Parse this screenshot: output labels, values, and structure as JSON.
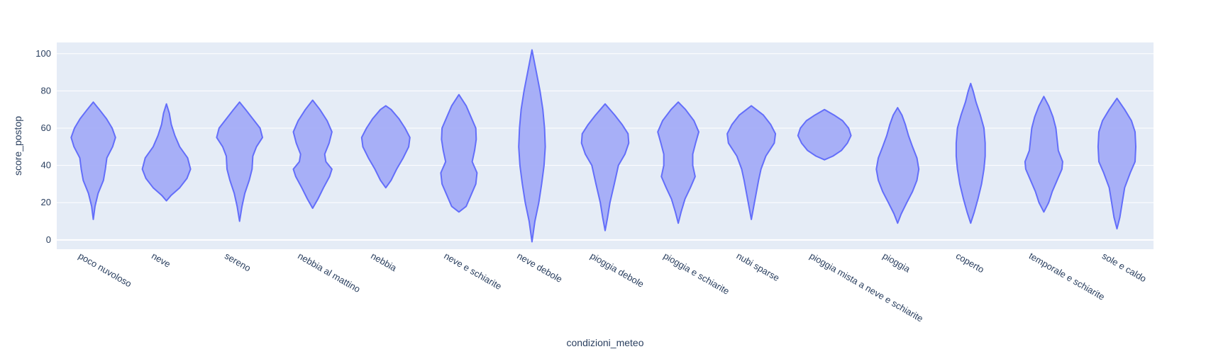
{
  "chart_data": {
    "type": "violin",
    "xlabel": "condizioni_meteo",
    "ylabel": "score_postop",
    "ylim": [
      -5,
      106
    ],
    "yticks": [
      0,
      20,
      40,
      60,
      80,
      100
    ],
    "grid": true,
    "colors": {
      "plot_bg": "#e5ecf6",
      "grid": "#ffffff",
      "fill": "#a3acf7",
      "line": "#636efa",
      "text": "#2a3f5f"
    },
    "categories": [
      "poco nuvoloso",
      "neve",
      "sereno",
      "nebbia al mattino",
      "nebbia",
      "neve e schiarite",
      "neve debole",
      "pioggia debole",
      "pioggia e schiarite",
      "nubi sparse",
      "pioggia mista a neve e schiarite",
      "pioggia",
      "coperto",
      "temporale e schiarite",
      "sole e caldo"
    ],
    "violins": [
      {
        "category": "poco nuvoloso",
        "min": 11,
        "max": 74,
        "profile": [
          [
            11,
            0
          ],
          [
            18,
            0.07
          ],
          [
            25,
            0.2
          ],
          [
            32,
            0.42
          ],
          [
            38,
            0.5
          ],
          [
            44,
            0.56
          ],
          [
            50,
            0.8
          ],
          [
            55,
            0.92
          ],
          [
            60,
            0.78
          ],
          [
            65,
            0.55
          ],
          [
            70,
            0.25
          ],
          [
            74,
            0
          ]
        ]
      },
      {
        "category": "neve",
        "min": 21,
        "max": 73,
        "profile": [
          [
            21,
            0
          ],
          [
            24,
            0.2
          ],
          [
            28,
            0.55
          ],
          [
            33,
            0.85
          ],
          [
            38,
            1.0
          ],
          [
            44,
            0.88
          ],
          [
            50,
            0.55
          ],
          [
            56,
            0.35
          ],
          [
            62,
            0.2
          ],
          [
            68,
            0.12
          ],
          [
            73,
            0
          ]
        ]
      },
      {
        "category": "sereno",
        "min": 10,
        "max": 74,
        "profile": [
          [
            10,
            0
          ],
          [
            18,
            0.1
          ],
          [
            25,
            0.22
          ],
          [
            32,
            0.4
          ],
          [
            38,
            0.52
          ],
          [
            45,
            0.55
          ],
          [
            50,
            0.7
          ],
          [
            55,
            0.95
          ],
          [
            60,
            0.85
          ],
          [
            65,
            0.55
          ],
          [
            70,
            0.25
          ],
          [
            74,
            0
          ]
        ]
      },
      {
        "category": "nebbia al mattino",
        "min": 17,
        "max": 75,
        "profile": [
          [
            17,
            0
          ],
          [
            22,
            0.22
          ],
          [
            28,
            0.45
          ],
          [
            34,
            0.7
          ],
          [
            38,
            0.8
          ],
          [
            42,
            0.55
          ],
          [
            46,
            0.5
          ],
          [
            52,
            0.68
          ],
          [
            58,
            0.8
          ],
          [
            64,
            0.6
          ],
          [
            70,
            0.3
          ],
          [
            75,
            0
          ]
        ]
      },
      {
        "category": "nebbia",
        "min": 28,
        "max": 72,
        "profile": [
          [
            28,
            0
          ],
          [
            32,
            0.22
          ],
          [
            38,
            0.45
          ],
          [
            44,
            0.72
          ],
          [
            50,
            0.95
          ],
          [
            55,
            1.0
          ],
          [
            60,
            0.8
          ],
          [
            65,
            0.55
          ],
          [
            70,
            0.22
          ],
          [
            72,
            0
          ]
        ]
      },
      {
        "category": "neve e schiarite",
        "min": 15,
        "max": 78,
        "profile": [
          [
            15,
            0
          ],
          [
            18,
            0.3
          ],
          [
            24,
            0.5
          ],
          [
            30,
            0.7
          ],
          [
            36,
            0.75
          ],
          [
            42,
            0.55
          ],
          [
            48,
            0.65
          ],
          [
            54,
            0.72
          ],
          [
            60,
            0.7
          ],
          [
            66,
            0.5
          ],
          [
            72,
            0.3
          ],
          [
            78,
            0
          ]
        ]
      },
      {
        "category": "neve debole",
        "min": -1,
        "max": 102,
        "profile": [
          [
            -1,
            0
          ],
          [
            10,
            0.12
          ],
          [
            20,
            0.28
          ],
          [
            30,
            0.4
          ],
          [
            40,
            0.5
          ],
          [
            50,
            0.55
          ],
          [
            60,
            0.52
          ],
          [
            70,
            0.45
          ],
          [
            80,
            0.33
          ],
          [
            90,
            0.18
          ],
          [
            102,
            0
          ]
        ]
      },
      {
        "category": "pioggia debole",
        "min": 5,
        "max": 73,
        "profile": [
          [
            5,
            0
          ],
          [
            12,
            0.1
          ],
          [
            20,
            0.2
          ],
          [
            30,
            0.38
          ],
          [
            40,
            0.55
          ],
          [
            46,
            0.82
          ],
          [
            52,
            0.98
          ],
          [
            57,
            0.95
          ],
          [
            62,
            0.7
          ],
          [
            67,
            0.4
          ],
          [
            73,
            0
          ]
        ]
      },
      {
        "category": "pioggia e schiarite",
        "min": 9,
        "max": 74,
        "profile": [
          [
            9,
            0
          ],
          [
            15,
            0.12
          ],
          [
            22,
            0.28
          ],
          [
            28,
            0.5
          ],
          [
            34,
            0.7
          ],
          [
            40,
            0.6
          ],
          [
            46,
            0.6
          ],
          [
            52,
            0.72
          ],
          [
            58,
            0.85
          ],
          [
            64,
            0.65
          ],
          [
            70,
            0.3
          ],
          [
            74,
            0
          ]
        ]
      },
      {
        "category": "nubi sparse",
        "min": 11,
        "max": 72,
        "profile": [
          [
            11,
            0
          ],
          [
            18,
            0.1
          ],
          [
            25,
            0.2
          ],
          [
            32,
            0.3
          ],
          [
            38,
            0.4
          ],
          [
            45,
            0.6
          ],
          [
            52,
            0.95
          ],
          [
            57,
            1.0
          ],
          [
            62,
            0.8
          ],
          [
            67,
            0.5
          ],
          [
            72,
            0
          ]
        ]
      },
      {
        "category": "pioggia mista a neve e schiarite",
        "min": 43,
        "max": 70,
        "profile": [
          [
            43,
            0
          ],
          [
            45,
            0.35
          ],
          [
            48,
            0.7
          ],
          [
            52,
            0.95
          ],
          [
            56,
            1.1
          ],
          [
            60,
            1.0
          ],
          [
            64,
            0.75
          ],
          [
            67,
            0.4
          ],
          [
            70,
            0
          ]
        ]
      },
      {
        "category": "pioggia",
        "min": 9,
        "max": 71,
        "profile": [
          [
            9,
            0
          ],
          [
            14,
            0.15
          ],
          [
            20,
            0.38
          ],
          [
            26,
            0.62
          ],
          [
            32,
            0.8
          ],
          [
            38,
            0.88
          ],
          [
            44,
            0.8
          ],
          [
            50,
            0.62
          ],
          [
            56,
            0.45
          ],
          [
            62,
            0.32
          ],
          [
            67,
            0.18
          ],
          [
            71,
            0
          ]
        ]
      },
      {
        "category": "coperto",
        "min": 9,
        "max": 84,
        "profile": [
          [
            9,
            0
          ],
          [
            15,
            0.15
          ],
          [
            22,
            0.3
          ],
          [
            30,
            0.45
          ],
          [
            38,
            0.55
          ],
          [
            45,
            0.6
          ],
          [
            52,
            0.6
          ],
          [
            60,
            0.55
          ],
          [
            67,
            0.4
          ],
          [
            74,
            0.22
          ],
          [
            80,
            0.1
          ],
          [
            84,
            0
          ]
        ]
      },
      {
        "category": "temporale e schiarite",
        "min": 15,
        "max": 77,
        "profile": [
          [
            15,
            0
          ],
          [
            20,
            0.2
          ],
          [
            26,
            0.35
          ],
          [
            32,
            0.55
          ],
          [
            38,
            0.75
          ],
          [
            42,
            0.78
          ],
          [
            48,
            0.6
          ],
          [
            54,
            0.55
          ],
          [
            60,
            0.5
          ],
          [
            66,
            0.38
          ],
          [
            72,
            0.2
          ],
          [
            77,
            0
          ]
        ]
      },
      {
        "category": "sole e caldo",
        "min": 6,
        "max": 76,
        "profile": [
          [
            6,
            0
          ],
          [
            12,
            0.12
          ],
          [
            20,
            0.22
          ],
          [
            28,
            0.32
          ],
          [
            36,
            0.55
          ],
          [
            42,
            0.75
          ],
          [
            50,
            0.78
          ],
          [
            58,
            0.75
          ],
          [
            64,
            0.6
          ],
          [
            70,
            0.32
          ],
          [
            76,
            0
          ]
        ]
      }
    ]
  }
}
